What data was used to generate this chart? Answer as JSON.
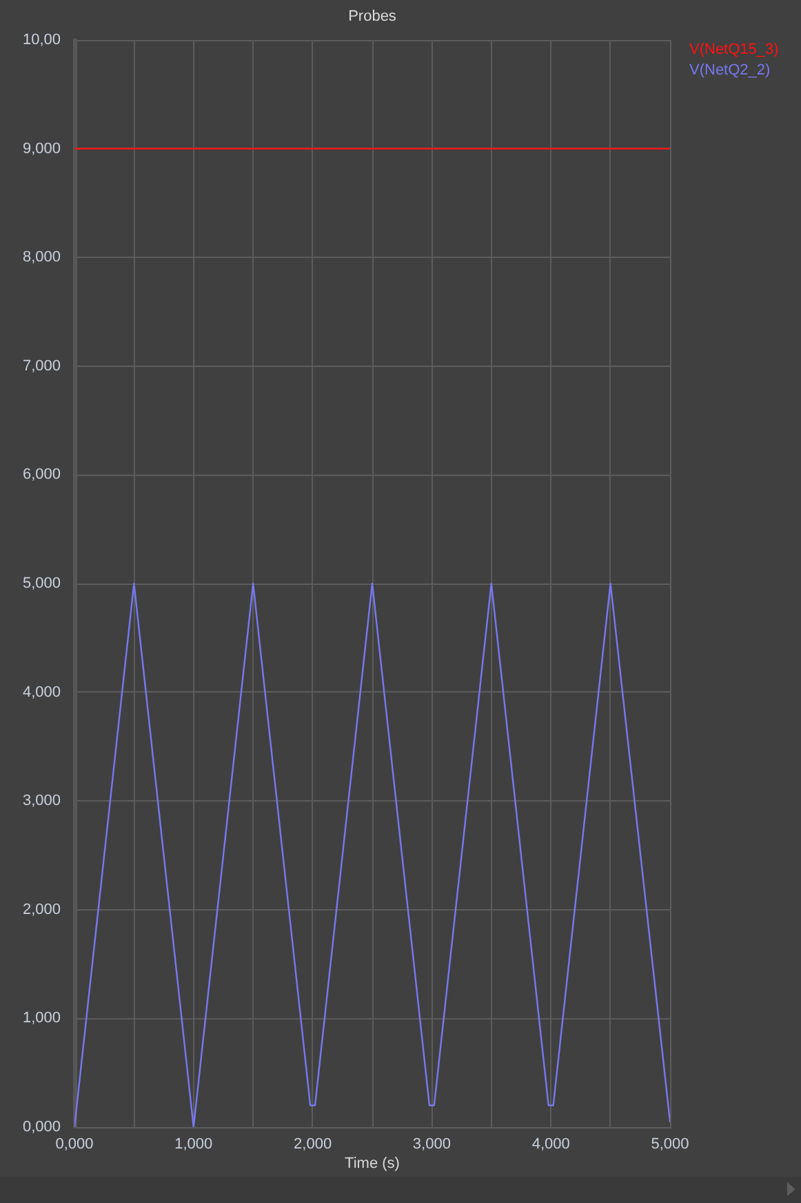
{
  "chart_data": {
    "type": "line",
    "title": "Probes",
    "xlabel": "Time (s)",
    "xlim": [
      0,
      5
    ],
    "xticks": [
      {
        "value": 0,
        "label": "0,000"
      },
      {
        "value": 0.5,
        "label": null
      },
      {
        "value": 1,
        "label": "1,000"
      },
      {
        "value": 1.5,
        "label": null
      },
      {
        "value": 2,
        "label": "2,000"
      },
      {
        "value": 2.5,
        "label": null
      },
      {
        "value": 3,
        "label": "3,000"
      },
      {
        "value": 3.5,
        "label": null
      },
      {
        "value": 4,
        "label": "4,000"
      },
      {
        "value": 4.5,
        "label": null
      },
      {
        "value": 5,
        "label": "5,000"
      }
    ],
    "ylim": [
      0,
      10
    ],
    "yticks": [
      {
        "value": 0,
        "label": "0,000"
      },
      {
        "value": 1,
        "label": "1,000"
      },
      {
        "value": 2,
        "label": "2,000"
      },
      {
        "value": 3,
        "label": "3,000"
      },
      {
        "value": 4,
        "label": "4,000"
      },
      {
        "value": 5,
        "label": "5,000"
      },
      {
        "value": 6,
        "label": "6,000"
      },
      {
        "value": 7,
        "label": "7,000"
      },
      {
        "value": 8,
        "label": "8,000"
      },
      {
        "value": 9,
        "label": "9,000"
      },
      {
        "value": 10,
        "label": "10,00"
      }
    ],
    "grid": true,
    "legend": "top right",
    "series": [
      {
        "name": "V(NetQ15_3)",
        "color": "#ff1010",
        "x": [
          0,
          5
        ],
        "values": [
          9,
          9
        ]
      },
      {
        "name": "V(NetQ2_2)",
        "color": "#7878f0",
        "x": [
          0,
          0.5,
          1,
          1.5,
          1.98,
          2.02,
          2.5,
          2.98,
          3.02,
          3.5,
          3.98,
          4.02,
          4.5,
          5
        ],
        "values": [
          0,
          5,
          0,
          5,
          0.2,
          0.2,
          5,
          0.2,
          0.2,
          5,
          0.2,
          0.2,
          5,
          0.05
        ]
      }
    ]
  }
}
